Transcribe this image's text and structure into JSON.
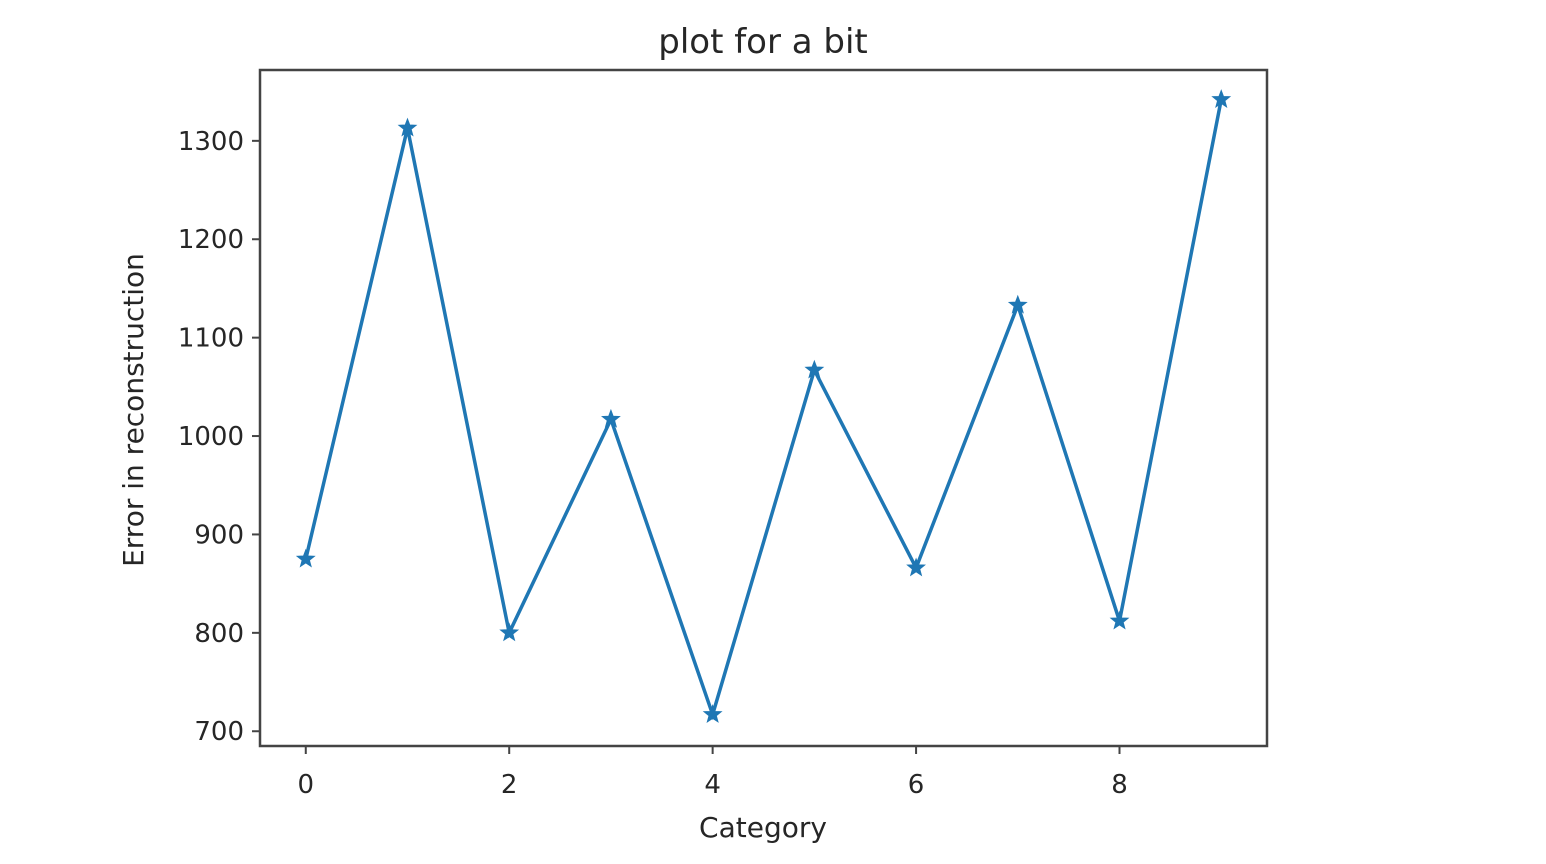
{
  "chart_data": {
    "type": "line",
    "title": "plot for a bit",
    "xlabel": "Category",
    "ylabel": "Error in reconstruction",
    "xlim": [
      -0.45,
      9.45
    ],
    "ylim": [
      685,
      1372
    ],
    "x_ticks": [
      0,
      2,
      4,
      6,
      8
    ],
    "x_tick_labels": [
      "0",
      "2",
      "4",
      "6",
      "8"
    ],
    "y_ticks": [
      700,
      800,
      900,
      1000,
      1100,
      1200,
      1300
    ],
    "y_tick_labels": [
      "700",
      "800",
      "900",
      "1000",
      "1100",
      "1200",
      "1300"
    ],
    "grid": false,
    "marker": "star",
    "color": "#1f77b4",
    "series": [
      {
        "x": [
          0,
          1,
          2,
          3,
          4,
          5,
          6,
          7,
          8,
          9
        ],
        "values": [
          875,
          1313,
          800,
          1017,
          717,
          1067,
          866,
          1133,
          812,
          1342
        ]
      }
    ]
  }
}
